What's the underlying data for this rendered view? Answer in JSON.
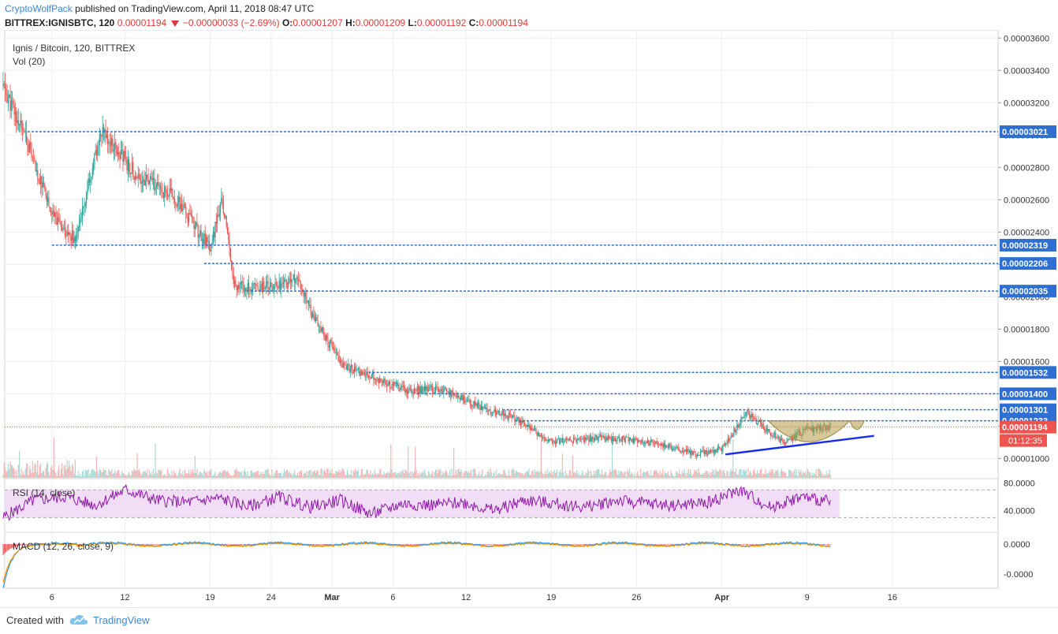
{
  "header": {
    "author": "CryptoWolfPack",
    "published_text": "published on TradingView.com, April 11, 2018 08:47 UTC",
    "symbol": "BITTREX:IGNISBTC, 120",
    "last": "0.00001194",
    "change": "−0.00000033 (−2.69%)",
    "open_label": "O:",
    "open": "0.00001207",
    "high_label": "H:",
    "high": "0.00001209",
    "low_label": "L:",
    "low": "0.00001192",
    "close_label": "C:",
    "close": "0.00001194"
  },
  "legend": {
    "title": "Ignis / Bitcoin, 120, BITTREX",
    "volume": "Vol (20)"
  },
  "footer": {
    "created_with": "Created with",
    "brand": "TradingView"
  },
  "colors": {
    "up": "#26a69a",
    "down": "#ef5350",
    "level_line": "#2f6fd1",
    "trendline": "#1a2ee6",
    "rsi_line": "#8e1aa6",
    "rsi_band": "#f1ddf6",
    "macd_line": "#2196f3",
    "signal_line": "#ff9800",
    "price_tag": "#ef5350",
    "cup_fill": "#b59a48"
  },
  "chart_data": {
    "type": "candlestick",
    "x_ticks": [
      "6",
      "12",
      "19",
      "24",
      "Mar",
      "6",
      "12",
      "19",
      "26",
      "Apr",
      "9",
      "16"
    ],
    "y_ticks": [
      "0.00003600",
      "0.00003400",
      "0.00003200",
      "0.00003000",
      "0.00002800",
      "0.00002600",
      "0.00002400",
      "0.00002200",
      "0.00002000",
      "0.00001800",
      "0.00001600",
      "0.00001400",
      "0.00001200",
      "0.00001000"
    ],
    "ylim": [
      8.8e-06,
      3.65e-05
    ],
    "close_path": [
      {
        "t": "Feb 02",
        "v": 3.3e-05
      },
      {
        "t": "Feb 04",
        "v": 2.95e-05
      },
      {
        "t": "Feb 06",
        "v": 2.5e-05
      },
      {
        "t": "Feb 08",
        "v": 2.35e-05
      },
      {
        "t": "Feb 10",
        "v": 3.03e-05
      },
      {
        "t": "Feb 13",
        "v": 2.75e-05
      },
      {
        "t": "Feb 16",
        "v": 2.62e-05
      },
      {
        "t": "Feb 19",
        "v": 2.3e-05
      },
      {
        "t": "Feb 20",
        "v": 2.6e-05
      },
      {
        "t": "Feb 21",
        "v": 2.07e-05
      },
      {
        "t": "Feb 24",
        "v": 2.06e-05
      },
      {
        "t": "Feb 26",
        "v": 2.11e-05
      },
      {
        "t": "Feb 28",
        "v": 1.8e-05
      },
      {
        "t": "Mar 02",
        "v": 1.57e-05
      },
      {
        "t": "Mar 04",
        "v": 1.52e-05
      },
      {
        "t": "Mar 07",
        "v": 1.42e-05
      },
      {
        "t": "Mar 10",
        "v": 1.43e-05
      },
      {
        "t": "Mar 13",
        "v": 1.32e-05
      },
      {
        "t": "Mar 16",
        "v": 1.25e-05
      },
      {
        "t": "Mar 19",
        "v": 1.1e-05
      },
      {
        "t": "Mar 23",
        "v": 1.13e-05
      },
      {
        "t": "Mar 27",
        "v": 1.1e-05
      },
      {
        "t": "Mar 31",
        "v": 1.03e-05
      },
      {
        "t": "Apr 02",
        "v": 1.06e-05
      },
      {
        "t": "Apr 04",
        "v": 1.28e-05
      },
      {
        "t": "Apr 07",
        "v": 1.1e-05
      },
      {
        "t": "Apr 09",
        "v": 1.18e-05
      },
      {
        "t": "Apr 11",
        "v": 1.19e-05
      }
    ],
    "level_lines": [
      "0.00003021",
      "0.00002319",
      "0.00002206",
      "0.00002035",
      "0.00001532",
      "0.00001400",
      "0.00001301",
      "0.00001233"
    ],
    "current_price": "0.00001194",
    "countdown": "01:12:35",
    "rsi": {
      "title": "RSI (14, close)",
      "ticks": [
        "80.0000",
        "40.0000"
      ],
      "upper": 70,
      "lower": 30,
      "values": [
        30,
        55,
        60,
        48,
        70,
        55,
        52,
        58,
        46,
        60,
        45,
        55,
        35,
        50,
        48,
        52,
        40,
        55,
        50,
        45,
        55,
        50,
        48,
        52,
        70,
        45,
        60,
        52
      ]
    },
    "macd": {
      "title": "MACD (12, 26, close, 9)",
      "ticks": [
        "0.0000",
        "-0.0000"
      ]
    }
  }
}
